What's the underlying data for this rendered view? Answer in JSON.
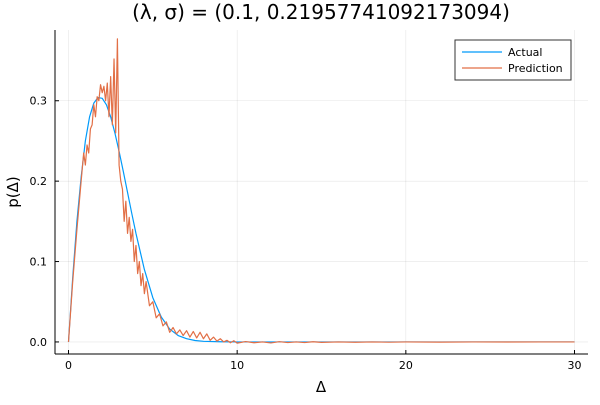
{
  "chart_data": {
    "type": "line",
    "title": "(λ, σ) = (0.1, 0.21957741092173094)",
    "xlabel": "Δ",
    "ylabel": "p(Δ)",
    "xlim": [
      -0.8,
      30.8
    ],
    "ylim": [
      -0.015,
      0.388
    ],
    "xticks": [
      0,
      10,
      20,
      30
    ],
    "xtick_labels": [
      "0",
      "10",
      "20",
      "30"
    ],
    "yticks": [
      0.0,
      0.1,
      0.2,
      0.3
    ],
    "ytick_labels": [
      "0.0",
      "0.1",
      "0.2",
      "0.3"
    ],
    "grid": true,
    "legend_position": "top-right",
    "series": [
      {
        "name": "Actual",
        "color": "#009AFA",
        "x": [
          0,
          0.25,
          0.5,
          0.75,
          1.0,
          1.25,
          1.5,
          1.75,
          2.0,
          2.25,
          2.5,
          2.75,
          3.0,
          3.25,
          3.5,
          3.75,
          4.0,
          4.5,
          5.0,
          5.5,
          6.0,
          6.5,
          7.0,
          7.5,
          8.0,
          9.0,
          10.0,
          15.0,
          20.0,
          25.0,
          30.0
        ],
        "y": [
          0.0,
          0.08,
          0.15,
          0.205,
          0.25,
          0.28,
          0.297,
          0.304,
          0.303,
          0.295,
          0.28,
          0.26,
          0.237,
          0.212,
          0.186,
          0.16,
          0.135,
          0.09,
          0.055,
          0.031,
          0.016,
          0.008,
          0.004,
          0.0018,
          0.0008,
          0.0002,
          0.0,
          0.0,
          0.0,
          0.0,
          0.0
        ]
      },
      {
        "name": "Prediction",
        "color": "#E26F46",
        "x": [
          0,
          0.25,
          0.5,
          0.75,
          0.9,
          1.0,
          1.1,
          1.2,
          1.3,
          1.4,
          1.5,
          1.6,
          1.7,
          1.8,
          1.9,
          2.0,
          2.1,
          2.2,
          2.3,
          2.4,
          2.5,
          2.6,
          2.7,
          2.8,
          2.9,
          3.0,
          3.1,
          3.2,
          3.3,
          3.4,
          3.5,
          3.6,
          3.7,
          3.8,
          3.9,
          4.0,
          4.1,
          4.2,
          4.3,
          4.4,
          4.5,
          4.6,
          4.8,
          5.0,
          5.2,
          5.4,
          5.6,
          5.8,
          6.0,
          6.2,
          6.4,
          6.6,
          6.8,
          7.0,
          7.2,
          7.4,
          7.6,
          7.8,
          8.0,
          8.2,
          8.4,
          8.6,
          8.8,
          9.0,
          9.2,
          9.4,
          9.6,
          9.8,
          10.0,
          10.5,
          11.0,
          11.5,
          12.0,
          12.5,
          13.0,
          13.5,
          14.0,
          14.5,
          15.0,
          16.0,
          17.0,
          18.0,
          19.0,
          20.0,
          22.0,
          24.0,
          26.0,
          28.0,
          30.0
        ],
        "y": [
          0.0,
          0.075,
          0.14,
          0.2,
          0.235,
          0.22,
          0.245,
          0.235,
          0.265,
          0.27,
          0.295,
          0.28,
          0.305,
          0.3,
          0.32,
          0.31,
          0.318,
          0.3,
          0.322,
          0.28,
          0.33,
          0.27,
          0.352,
          0.26,
          0.377,
          0.22,
          0.2,
          0.19,
          0.15,
          0.175,
          0.135,
          0.155,
          0.125,
          0.14,
          0.1,
          0.12,
          0.085,
          0.1,
          0.07,
          0.085,
          0.06,
          0.075,
          0.045,
          0.05,
          0.03,
          0.035,
          0.02,
          0.025,
          0.012,
          0.018,
          0.01,
          0.015,
          0.008,
          0.014,
          0.006,
          0.013,
          0.005,
          0.012,
          0.004,
          0.01,
          0.002,
          0.006,
          0.001,
          0.004,
          0.0,
          0.002,
          -0.001,
          0.0015,
          -0.0015,
          0.0005,
          -0.001,
          0.0,
          -0.0012,
          0.0003,
          -0.0008,
          0.0,
          -0.0008,
          0.0002,
          -0.0005,
          0.0,
          -0.0004,
          0.0,
          -0.0003,
          0.0,
          -0.0002,
          0.0,
          -0.0001,
          0.0,
          0.0
        ]
      }
    ]
  }
}
